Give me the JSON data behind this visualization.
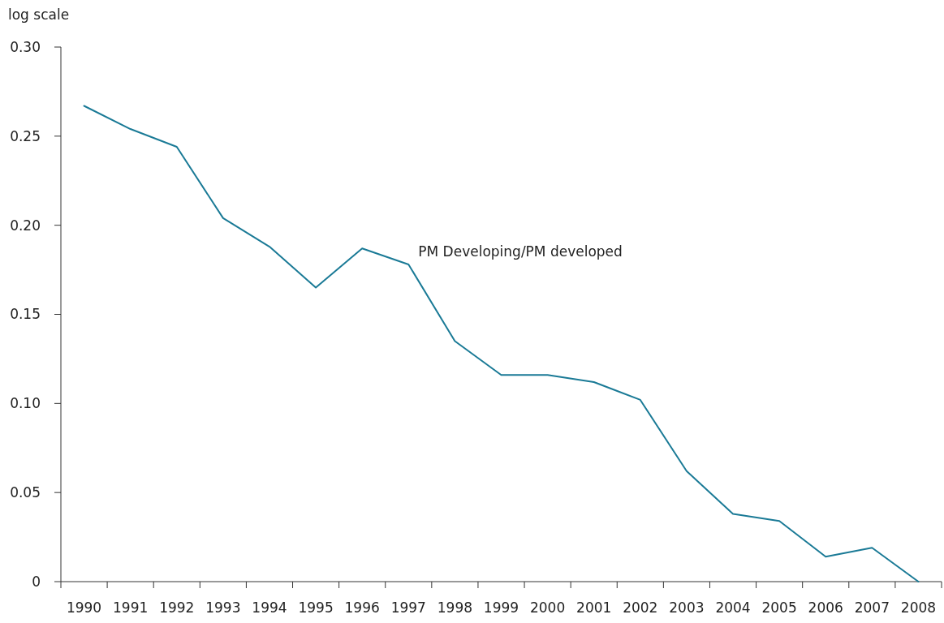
{
  "chart_data": {
    "type": "line",
    "ylabel": "log scale",
    "categories": [
      "1990",
      "1991",
      "1992",
      "1993",
      "1994",
      "1995",
      "1996",
      "1997",
      "1998",
      "1999",
      "2000",
      "2001",
      "2002",
      "2003",
      "2004",
      "2005",
      "2006",
      "2007",
      "2008"
    ],
    "series": [
      {
        "name": "PM Developing/PM developed",
        "color": "#1a7a96",
        "values": [
          0.267,
          0.254,
          0.244,
          0.204,
          0.188,
          0.165,
          0.187,
          0.178,
          0.135,
          0.116,
          0.116,
          0.112,
          0.102,
          0.062,
          0.038,
          0.034,
          0.014,
          0.019,
          0
        ]
      }
    ],
    "ylim": [
      0,
      0.3
    ],
    "yticks": [
      0,
      {
        "value": 0.05,
        "label": "0.05"
      },
      {
        "value": 0.1,
        "label": "0.10"
      },
      {
        "value": 0.15,
        "label": "0.15"
      },
      {
        "value": 0.2,
        "label": "0.20"
      },
      {
        "value": 0.25,
        "label": "0.25"
      },
      {
        "value": 0.3,
        "label": "0.30"
      }
    ],
    "grid": false,
    "marker": "none",
    "line_style": "solid"
  }
}
